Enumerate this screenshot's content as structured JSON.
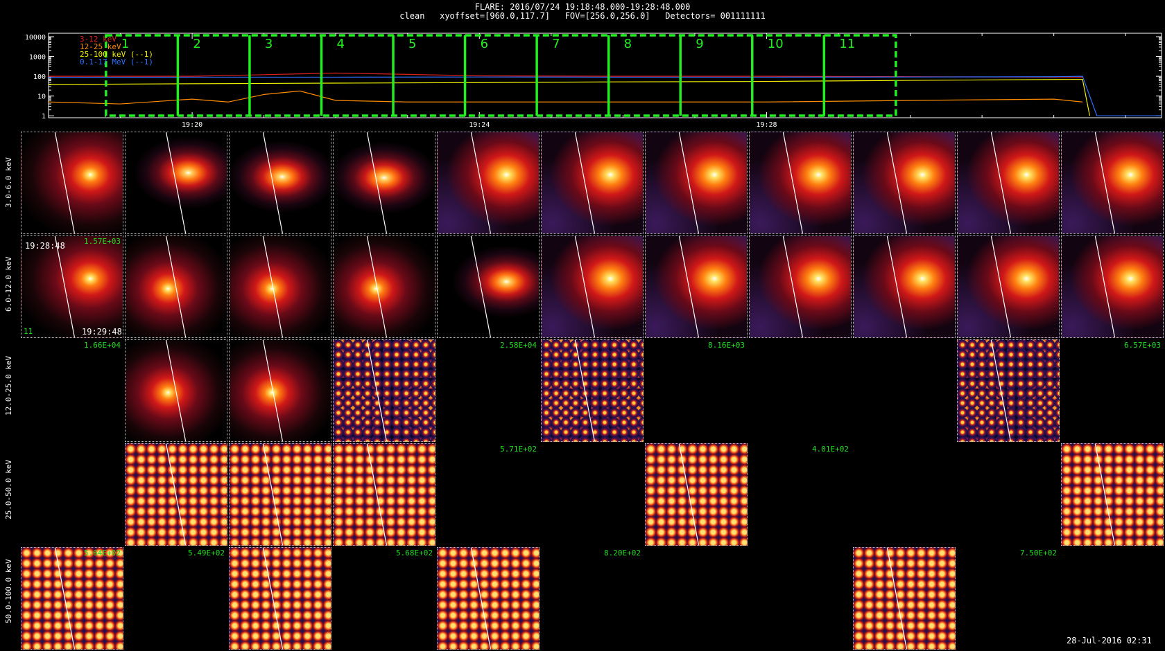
{
  "header": {
    "line1": "FLARE: 2016/07/24 19:18:48.000-19:28:48.000",
    "line2": "clean   xyoffset=[960.0,117.7]   FOV=[256.0,256.0]   Detectors= 001111111"
  },
  "date_stamp": "28-Jul-2016 02:31",
  "chart_data": [
    {
      "type": "line",
      "legend": [
        {
          "label": "3-12 keV",
          "color": "#e02020"
        },
        {
          "label": "12-25 keV",
          "color": "#ff8c00"
        },
        {
          "label": "25-100 keV (--1)",
          "color": "#f0f000"
        },
        {
          "label": "0.1-17 MeV (--1)",
          "color": "#3070ff"
        }
      ],
      "yscale": "log",
      "ylim": [
        0.8,
        15000
      ],
      "yticks": [
        "1",
        "10",
        "100",
        "1000",
        "10000"
      ],
      "xlim_minutes": [
        18.0,
        33.5
      ],
      "xticks": [
        "19:20",
        "19:24",
        "19:28"
      ],
      "xtick_minutes": [
        20,
        24,
        28
      ],
      "series": [
        {
          "name": "3-12 keV",
          "color": "#e02020",
          "x_minutes": [
            18.0,
            20.0,
            22.0,
            23.0,
            24.0,
            26.0,
            28.0,
            30.0,
            32.4
          ],
          "y": [
            100,
            100,
            145,
            125,
            105,
            100,
            100,
            95,
            90
          ]
        },
        {
          "name": "12-25 keV",
          "color": "#ff8c00",
          "x_minutes": [
            18.0,
            19.0,
            20.0,
            20.5,
            21.0,
            21.5,
            22.0,
            23.0,
            24.0,
            26.0,
            28.0,
            30.0,
            32.0,
            32.4
          ],
          "y": [
            5,
            4,
            7,
            5,
            12,
            18,
            6,
            5,
            5,
            5,
            5,
            6,
            7,
            5
          ]
        },
        {
          "name": "25-100 keV (--1)",
          "color": "#f0f000",
          "x_minutes": [
            18.0,
            20.0,
            22.0,
            24.0,
            26.0,
            28.0,
            30.0,
            32.4,
            32.5
          ],
          "y": [
            38,
            42,
            45,
            48,
            52,
            55,
            62,
            70,
            1
          ]
        },
        {
          "name": "0.1-17 MeV (--1)",
          "color": "#3070ff",
          "x_minutes": [
            18.0,
            20.0,
            22.0,
            24.0,
            26.0,
            28.0,
            30.0,
            32.0,
            32.4,
            32.6,
            33.5
          ],
          "y": [
            88,
            90,
            90,
            92,
            90,
            90,
            92,
            95,
            100,
            1,
            1
          ]
        }
      ],
      "intervals": [
        "1",
        "2",
        "3",
        "4",
        "5",
        "6",
        "7",
        "8",
        "9",
        "10",
        "11"
      ],
      "interval_start_minutes": [
        18.8,
        19.8,
        20.8,
        21.8,
        22.8,
        23.8,
        24.8,
        25.8,
        26.8,
        27.8,
        28.8
      ],
      "interval_end_minutes": 29.8
    }
  ],
  "image_grid": {
    "rows": [
      {
        "label": "3.0-6.0 keV",
        "cells": [
          "b:68,42",
          "bl:62,40",
          "bl:52,44",
          "bl:50,45",
          "bw:68,42",
          "bw:68,42",
          "bw:68,42",
          "bw:68,42",
          "bw:68,42",
          "bw:68,42",
          "bw:68,42"
        ],
        "flux": [
          "",
          "",
          "",
          "",
          "",
          "",
          "",
          "",
          "",
          "",
          ""
        ]
      },
      {
        "label": "6.0-12.0 keV",
        "cells": [
          "b:68,42",
          "b:42,52",
          "b:42,52",
          "b:42,52",
          "bl:68,45",
          "bw:68,42",
          "bw:68,42",
          "bw:68,42",
          "bw:68,42",
          "bw:68,42",
          "bw:68,42"
        ],
        "flux": [
          "1.57E+03",
          "",
          "",
          "",
          "",
          "",
          "",
          "",
          "",
          "",
          ""
        ]
      },
      {
        "label": "12.0-25.0 keV",
        "cells": [
          "",
          "b:42,52",
          "b:42,52",
          "n",
          "",
          "n",
          "",
          "",
          "",
          "n",
          ""
        ],
        "flux": [
          "1.66E+04",
          "",
          "",
          "",
          "2.58E+04",
          "",
          "8.16E+03",
          "",
          "",
          "",
          "6.57E+03"
        ]
      },
      {
        "label": "25.0-50.0 keV",
        "cells": [
          "",
          "n",
          "n",
          "n",
          "",
          "",
          "n",
          "",
          "",
          "",
          "n"
        ],
        "flux": [
          "",
          "",
          "",
          "",
          "5.71E+02",
          "",
          "",
          "4.01E+02",
          "",
          "",
          ""
        ]
      },
      {
        "label": "50.0-100.0 keV",
        "cells": [
          "n",
          "",
          "n",
          "",
          "n",
          "",
          "",
          "",
          "n",
          "",
          ""
        ],
        "flux": [
          "5.64E+02",
          "5.49E+02",
          "",
          "5.68E+02",
          "",
          "8.20E+02",
          "",
          "",
          "",
          "7.50E+02",
          ""
        ]
      }
    ],
    "cell2_start_time": "19:28:48",
    "cell2_end_time": "19:29:48",
    "cell2_interval": "11"
  }
}
